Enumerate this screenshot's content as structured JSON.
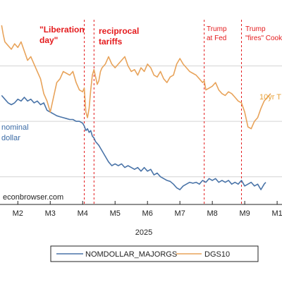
{
  "chart_data": {
    "type": "line",
    "year_label": "2025",
    "x_tick_labels": [
      "M2",
      "M3",
      "M4",
      "M5",
      "M6",
      "M7",
      "M8",
      "M9",
      "M1"
    ],
    "x_ticks": [
      2,
      3,
      4,
      5,
      6,
      7,
      8,
      9,
      10
    ],
    "xlim": [
      1.45,
      10.15
    ],
    "ylim": [
      0,
      100
    ],
    "grid": "horizontal",
    "legend": "bottom",
    "source_text": "econbrowser.com",
    "event_lines": [
      {
        "x": 4.05,
        "color": "#e41a1c"
      },
      {
        "x": 4.35,
        "color": "#e41a1c"
      },
      {
        "x": 7.75,
        "color": "#e41a1c"
      },
      {
        "x": 8.9,
        "color": "#e41a1c"
      }
    ],
    "annotations": [
      {
        "lines": [
          "\"Liberation",
          "day\""
        ],
        "style": "bold"
      },
      {
        "lines": [
          "reciprocal",
          "tariffs"
        ],
        "style": "bold"
      },
      {
        "lines": [
          "Trump",
          "at Fed"
        ],
        "style": "normal"
      },
      {
        "lines": [
          "Trump",
          "\"fires\" Cook"
        ],
        "style": "normal"
      }
    ],
    "series_labels": [
      {
        "lines": [
          "nominal",
          "dollar"
        ],
        "color": "#3b6ba5"
      },
      {
        "lines": [
          "10yr T"
        ],
        "color": "#e8a33c"
      }
    ],
    "series": [
      {
        "name": "NOMDOLLAR_MAJORGS",
        "color": "#4a74a8",
        "points": [
          [
            1.5,
            59
          ],
          [
            1.6,
            57
          ],
          [
            1.7,
            55
          ],
          [
            1.8,
            54
          ],
          [
            1.9,
            55
          ],
          [
            2.0,
            57
          ],
          [
            2.1,
            56
          ],
          [
            2.2,
            58
          ],
          [
            2.3,
            56
          ],
          [
            2.4,
            57
          ],
          [
            2.5,
            55
          ],
          [
            2.6,
            56
          ],
          [
            2.7,
            54
          ],
          [
            2.8,
            55
          ],
          [
            2.9,
            51
          ],
          [
            3.0,
            50
          ],
          [
            3.1,
            49
          ],
          [
            3.2,
            48
          ],
          [
            3.3,
            47.5
          ],
          [
            3.4,
            47
          ],
          [
            3.5,
            46.5
          ],
          [
            3.6,
            46
          ],
          [
            3.7,
            46
          ],
          [
            3.8,
            45
          ],
          [
            3.9,
            45
          ],
          [
            4.0,
            44
          ],
          [
            4.05,
            42.5
          ],
          [
            4.1,
            40
          ],
          [
            4.15,
            41
          ],
          [
            4.2,
            39
          ],
          [
            4.25,
            40
          ],
          [
            4.3,
            37
          ],
          [
            4.35,
            36
          ],
          [
            4.4,
            34
          ],
          [
            4.5,
            32
          ],
          [
            4.6,
            29
          ],
          [
            4.7,
            26
          ],
          [
            4.8,
            23
          ],
          [
            4.9,
            21
          ],
          [
            5.0,
            22
          ],
          [
            5.1,
            21
          ],
          [
            5.2,
            22
          ],
          [
            5.3,
            20
          ],
          [
            5.4,
            21
          ],
          [
            5.5,
            20
          ],
          [
            5.6,
            19
          ],
          [
            5.7,
            20
          ],
          [
            5.8,
            18
          ],
          [
            5.9,
            20
          ],
          [
            6.0,
            18
          ],
          [
            6.1,
            19
          ],
          [
            6.2,
            16
          ],
          [
            6.3,
            17
          ],
          [
            6.4,
            15
          ],
          [
            6.5,
            14
          ],
          [
            6.6,
            13
          ],
          [
            6.7,
            12.5
          ],
          [
            6.8,
            11
          ],
          [
            6.9,
            9
          ],
          [
            7.0,
            8
          ],
          [
            7.1,
            10
          ],
          [
            7.2,
            11
          ],
          [
            7.3,
            12
          ],
          [
            7.4,
            11.5
          ],
          [
            7.5,
            12
          ],
          [
            7.6,
            11
          ],
          [
            7.7,
            13
          ],
          [
            7.8,
            12
          ],
          [
            7.9,
            14
          ],
          [
            8.0,
            13
          ],
          [
            8.1,
            14
          ],
          [
            8.2,
            12
          ],
          [
            8.3,
            13
          ],
          [
            8.4,
            12
          ],
          [
            8.5,
            13
          ],
          [
            8.6,
            11
          ],
          [
            8.7,
            12
          ],
          [
            8.8,
            11
          ],
          [
            8.9,
            13
          ],
          [
            9.0,
            10
          ],
          [
            9.1,
            11
          ],
          [
            9.2,
            12
          ],
          [
            9.3,
            10
          ],
          [
            9.4,
            11
          ],
          [
            9.5,
            8
          ],
          [
            9.6,
            11
          ],
          [
            9.65,
            12
          ]
        ]
      },
      {
        "name": "DGS10",
        "color": "#e8a35a",
        "points": [
          [
            1.5,
            97
          ],
          [
            1.55,
            92
          ],
          [
            1.6,
            88
          ],
          [
            1.7,
            86
          ],
          [
            1.8,
            84
          ],
          [
            1.9,
            87
          ],
          [
            2.0,
            85
          ],
          [
            2.1,
            88
          ],
          [
            2.2,
            83
          ],
          [
            2.3,
            78
          ],
          [
            2.4,
            80
          ],
          [
            2.5,
            76
          ],
          [
            2.6,
            72
          ],
          [
            2.7,
            68
          ],
          [
            2.8,
            60
          ],
          [
            2.9,
            56
          ],
          [
            3.0,
            50
          ],
          [
            3.1,
            58
          ],
          [
            3.2,
            66
          ],
          [
            3.3,
            68
          ],
          [
            3.4,
            72
          ],
          [
            3.5,
            71
          ],
          [
            3.6,
            70
          ],
          [
            3.7,
            72
          ],
          [
            3.8,
            66
          ],
          [
            3.9,
            62
          ],
          [
            4.0,
            61
          ],
          [
            4.05,
            63
          ],
          [
            4.1,
            50
          ],
          [
            4.15,
            47
          ],
          [
            4.2,
            52
          ],
          [
            4.25,
            62
          ],
          [
            4.3,
            70
          ],
          [
            4.35,
            73
          ],
          [
            4.4,
            69
          ],
          [
            4.45,
            65
          ],
          [
            4.5,
            67
          ],
          [
            4.55,
            72
          ],
          [
            4.6,
            74
          ],
          [
            4.7,
            76
          ],
          [
            4.8,
            80
          ],
          [
            4.9,
            76
          ],
          [
            5.0,
            74
          ],
          [
            5.1,
            76
          ],
          [
            5.2,
            78
          ],
          [
            5.3,
            80
          ],
          [
            5.4,
            75
          ],
          [
            5.5,
            72
          ],
          [
            5.6,
            73
          ],
          [
            5.7,
            70
          ],
          [
            5.8,
            74
          ],
          [
            5.9,
            72
          ],
          [
            6.0,
            76
          ],
          [
            6.1,
            74
          ],
          [
            6.2,
            70
          ],
          [
            6.3,
            69
          ],
          [
            6.4,
            72
          ],
          [
            6.5,
            68
          ],
          [
            6.6,
            66
          ],
          [
            6.7,
            69
          ],
          [
            6.8,
            70
          ],
          [
            6.9,
            76
          ],
          [
            7.0,
            79
          ],
          [
            7.1,
            76
          ],
          [
            7.2,
            74
          ],
          [
            7.3,
            72
          ],
          [
            7.4,
            71
          ],
          [
            7.5,
            70
          ],
          [
            7.6,
            68
          ],
          [
            7.7,
            66
          ],
          [
            7.75,
            67
          ],
          [
            7.8,
            62
          ],
          [
            7.9,
            63
          ],
          [
            8.0,
            64
          ],
          [
            8.1,
            66
          ],
          [
            8.2,
            62
          ],
          [
            8.3,
            60
          ],
          [
            8.4,
            59
          ],
          [
            8.5,
            61
          ],
          [
            8.6,
            60
          ],
          [
            8.7,
            58
          ],
          [
            8.8,
            56
          ],
          [
            8.9,
            55
          ],
          [
            9.0,
            50
          ],
          [
            9.1,
            42
          ],
          [
            9.2,
            41
          ],
          [
            9.3,
            45
          ],
          [
            9.4,
            47
          ],
          [
            9.5,
            52
          ],
          [
            9.6,
            56
          ],
          [
            9.7,
            58
          ],
          [
            9.8,
            60
          ]
        ]
      }
    ]
  }
}
